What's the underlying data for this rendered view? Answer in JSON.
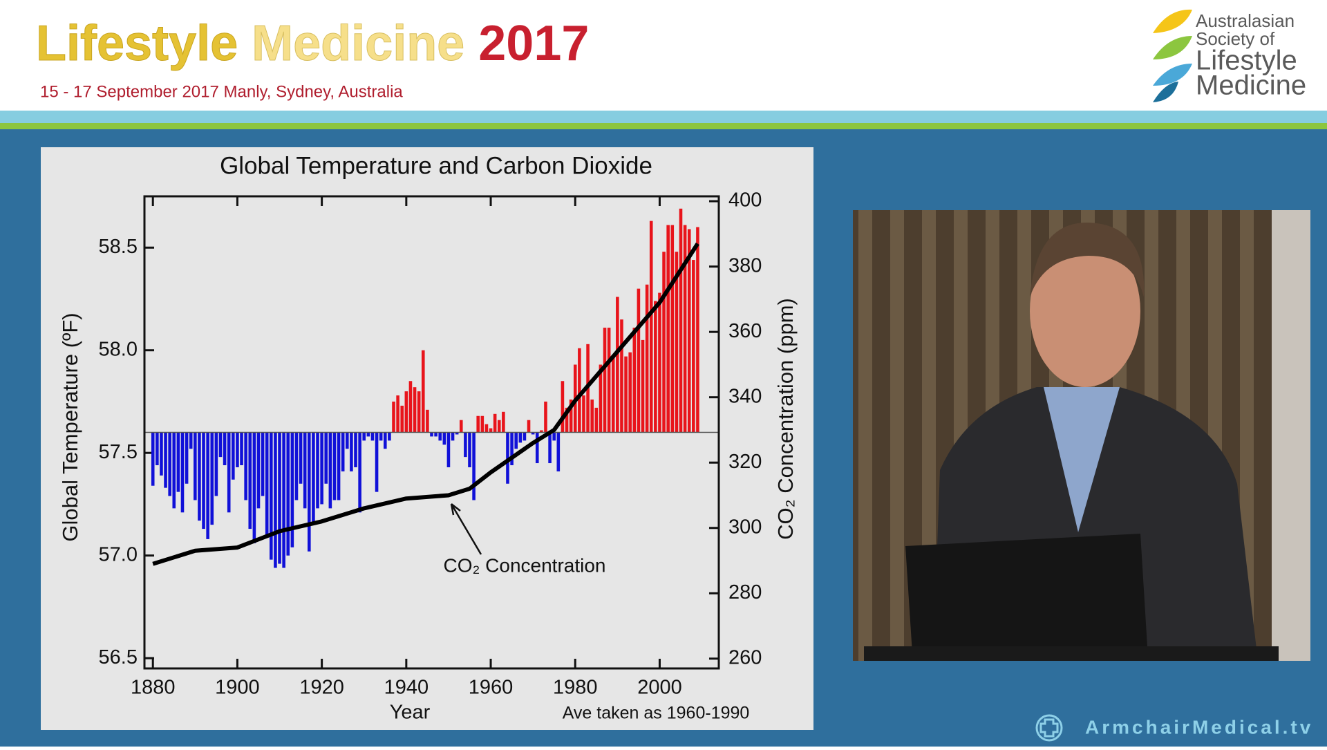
{
  "header": {
    "title": [
      "Lifestyle",
      "Medicine",
      "2017"
    ],
    "subtitle": "15 - 17 September 2017 Manly, Sydney, Australia"
  },
  "logo": {
    "lines": [
      "Australasian",
      "Society of",
      "Lifestyle",
      "Medicine"
    ]
  },
  "watermark": "ArmchairMedical.tv",
  "chart_data": {
    "type": "bar",
    "title": "Global Temperature and Carbon Dioxide",
    "x_label": "Year",
    "y_label": "Global Temperature (ºF)",
    "y2_label": "CO₂ Concentration (ppm)",
    "annotation": "CO₂ Concentration",
    "note": "Ave taken as 1960-1990",
    "x": [
      1880,
      1881,
      1882,
      1883,
      1884,
      1885,
      1886,
      1887,
      1888,
      1889,
      1890,
      1891,
      1892,
      1893,
      1894,
      1895,
      1896,
      1897,
      1898,
      1899,
      1900,
      1901,
      1902,
      1903,
      1904,
      1905,
      1906,
      1907,
      1908,
      1909,
      1910,
      1911,
      1912,
      1913,
      1914,
      1915,
      1916,
      1917,
      1918,
      1919,
      1920,
      1921,
      1922,
      1923,
      1924,
      1925,
      1926,
      1927,
      1928,
      1929,
      1930,
      1931,
      1932,
      1933,
      1934,
      1935,
      1936,
      1937,
      1938,
      1939,
      1940,
      1941,
      1942,
      1943,
      1944,
      1945,
      1946,
      1947,
      1948,
      1949,
      1950,
      1951,
      1952,
      1953,
      1954,
      1955,
      1956,
      1957,
      1958,
      1959,
      1960,
      1961,
      1962,
      1963,
      1964,
      1965,
      1966,
      1967,
      1968,
      1969,
      1970,
      1971,
      1972,
      1973,
      1974,
      1975,
      1976,
      1977,
      1978,
      1979,
      1980,
      1981,
      1982,
      1983,
      1984,
      1985,
      1986,
      1987,
      1988,
      1989,
      1990,
      1991,
      1992,
      1993,
      1994,
      1995,
      1996,
      1997,
      1998,
      1999,
      2000,
      2001,
      2002,
      2003,
      2004,
      2005,
      2006,
      2007,
      2008,
      2009
    ],
    "values": [
      57.34,
      57.44,
      57.39,
      57.33,
      57.29,
      57.23,
      57.31,
      57.21,
      57.35,
      57.52,
      57.27,
      57.17,
      57.13,
      57.08,
      57.15,
      57.29,
      57.48,
      57.44,
      57.21,
      57.37,
      57.43,
      57.44,
      57.27,
      57.13,
      57.06,
      57.23,
      57.29,
      57.1,
      56.98,
      56.94,
      56.96,
      56.94,
      57.0,
      57.04,
      57.27,
      57.35,
      57.23,
      57.02,
      57.15,
      57.23,
      57.25,
      57.35,
      57.23,
      57.27,
      57.27,
      57.41,
      57.52,
      57.41,
      57.43,
      57.21,
      57.56,
      57.58,
      57.56,
      57.31,
      57.56,
      57.52,
      57.56,
      57.75,
      57.78,
      57.73,
      57.8,
      57.85,
      57.82,
      57.8,
      58.0,
      57.71,
      57.58,
      57.58,
      57.56,
      57.54,
      57.43,
      57.56,
      57.59,
      57.66,
      57.48,
      57.43,
      57.27,
      57.68,
      57.68,
      57.64,
      57.62,
      57.69,
      57.66,
      57.7,
      57.35,
      57.44,
      57.52,
      57.55,
      57.56,
      57.66,
      57.59,
      57.45,
      57.61,
      57.75,
      57.45,
      57.56,
      57.41,
      57.85,
      57.72,
      57.76,
      57.93,
      58.01,
      57.78,
      58.03,
      57.76,
      57.72,
      57.93,
      58.11,
      58.11,
      57.97,
      58.26,
      58.15,
      57.97,
      57.99,
      58.11,
      58.3,
      58.05,
      58.32,
      58.63,
      58.24,
      58.28,
      58.48,
      58.61,
      58.61,
      58.48,
      58.69,
      58.61,
      58.59,
      58.44,
      58.6
    ],
    "baseline": 57.6,
    "color_above": "#e8141b",
    "color_below": "#1010d8",
    "xlim": [
      1878,
      2014
    ],
    "xticks": [
      1880,
      1900,
      1920,
      1940,
      1960,
      1980,
      2000
    ],
    "ylim": [
      56.45,
      58.75
    ],
    "yticks": [
      56.5,
      {
        "value": 57,
        "label": "57.0"
      },
      57.5,
      {
        "value": 58,
        "label": "58.0"
      },
      58.5
    ],
    "y2lim": [
      257,
      401.5
    ],
    "y2ticks": [
      260,
      280,
      300,
      320,
      340,
      360,
      380,
      400
    ],
    "line": {
      "type": "line",
      "axis": "y2",
      "color": "#000000",
      "x": [
        1880,
        1890,
        1900,
        1910,
        1920,
        1930,
        1940,
        1950,
        1955,
        1960,
        1970,
        1975,
        1980,
        1990,
        2000,
        2009
      ],
      "values": [
        289,
        293,
        294,
        299,
        302,
        306,
        309,
        310,
        312,
        317,
        326,
        330,
        339,
        354,
        369,
        387
      ]
    }
  }
}
